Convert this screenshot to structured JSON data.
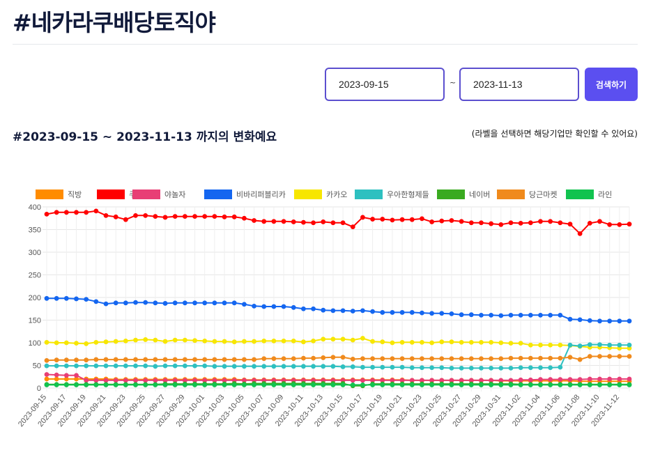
{
  "page": {
    "title": "#네카라쿠배당토직야",
    "range_title": "#2023-09-15 ~ 2023-11-13 까지의 변화예요",
    "hint": "(라벨을 선택하면 해당기업만 확인할 수 있어요)"
  },
  "search": {
    "start_date": "2023-09-15",
    "end_date": "2023-11-13",
    "separator": "~",
    "button_label": "검색하기",
    "button_color": "#5b4ff0"
  },
  "chart_data": {
    "type": "line",
    "x": [
      "2023-09-15",
      "2023-09-16",
      "2023-09-17",
      "2023-09-18",
      "2023-09-19",
      "2023-09-20",
      "2023-09-21",
      "2023-09-22",
      "2023-09-23",
      "2023-09-24",
      "2023-09-25",
      "2023-09-26",
      "2023-09-27",
      "2023-09-28",
      "2023-09-29",
      "2023-09-30",
      "2023-10-01",
      "2023-10-02",
      "2023-10-03",
      "2023-10-04",
      "2023-10-05",
      "2023-10-06",
      "2023-10-07",
      "2023-10-08",
      "2023-10-09",
      "2023-10-10",
      "2023-10-11",
      "2023-10-12",
      "2023-10-13",
      "2023-10-14",
      "2023-10-15",
      "2023-10-16",
      "2023-10-17",
      "2023-10-18",
      "2023-10-19",
      "2023-10-20",
      "2023-10-21",
      "2023-10-22",
      "2023-10-23",
      "2023-10-24",
      "2023-10-25",
      "2023-10-26",
      "2023-10-27",
      "2023-10-28",
      "2023-10-29",
      "2023-10-30",
      "2023-10-31",
      "2023-11-01",
      "2023-11-02",
      "2023-11-03",
      "2023-11-04",
      "2023-11-05",
      "2023-11-06",
      "2023-11-07",
      "2023-11-08",
      "2023-11-09",
      "2023-11-10",
      "2023-11-11",
      "2023-11-12",
      "2023-11-13"
    ],
    "x_tick_labels": [
      "2023-09-15",
      "2023-09-17",
      "2023-09-19",
      "2023-09-21",
      "2023-09-23",
      "2023-09-25",
      "2023-09-27",
      "2023-09-29",
      "2023-10-01",
      "2023-10-03",
      "2023-10-05",
      "2023-10-07",
      "2023-10-09",
      "2023-10-11",
      "2023-10-13",
      "2023-10-15",
      "2023-10-17",
      "2023-10-19",
      "2023-10-21",
      "2023-10-23",
      "2023-10-25",
      "2023-10-27",
      "2023-10-29",
      "2023-10-31",
      "2023-11-02",
      "2023-11-04",
      "2023-11-06",
      "2023-11-08",
      "2023-11-10",
      "2023-11-12"
    ],
    "y_ticks": [
      0,
      50,
      100,
      150,
      200,
      250,
      300,
      350,
      400
    ],
    "ylim": [
      0,
      400
    ],
    "grid": true,
    "legend_position": "top",
    "series": [
      {
        "name": "직방",
        "color": "#ff8c00",
        "values": [
          20,
          20,
          20,
          20,
          20,
          20,
          20,
          19,
          19,
          19,
          19,
          19,
          19,
          19,
          19,
          19,
          19,
          19,
          19,
          19,
          18,
          18,
          18,
          18,
          18,
          18,
          18,
          18,
          18,
          18,
          18,
          18,
          18,
          18,
          18,
          18,
          18,
          17,
          17,
          17,
          17,
          17,
          17,
          17,
          17,
          17,
          16,
          16,
          16,
          16,
          16,
          16,
          16,
          16,
          15,
          15,
          15,
          15,
          15,
          15
        ]
      },
      {
        "name": "쿠팡",
        "color": "#ff0000",
        "values": [
          384,
          388,
          388,
          388,
          388,
          391,
          381,
          378,
          372,
          381,
          381,
          379,
          377,
          379,
          379,
          379,
          379,
          379,
          378,
          378,
          375,
          370,
          368,
          368,
          368,
          367,
          366,
          365,
          367,
          365,
          365,
          356,
          377,
          373,
          373,
          371,
          372,
          372,
          374,
          367,
          369,
          370,
          368,
          365,
          365,
          363,
          361,
          365,
          364,
          365,
          368,
          368,
          365,
          362,
          341,
          364,
          368,
          361,
          361,
          362
        ]
      },
      {
        "name": "야놀자",
        "color": "#e83e75",
        "values": [
          30,
          29,
          28,
          28,
          17,
          17,
          17,
          17,
          17,
          17,
          17,
          17,
          17,
          17,
          17,
          17,
          17,
          17,
          17,
          17,
          17,
          17,
          17,
          17,
          17,
          17,
          17,
          17,
          17,
          17,
          17,
          17,
          17,
          17,
          17,
          17,
          17,
          17,
          17,
          17,
          17,
          17,
          17,
          17,
          17,
          17,
          17,
          17,
          18,
          18,
          19,
          19,
          19,
          19,
          19,
          20,
          20,
          20,
          20,
          20
        ]
      },
      {
        "name": "비바리퍼블리카",
        "color": "#1466f0",
        "values": [
          198,
          198,
          198,
          197,
          196,
          191,
          186,
          188,
          188,
          189,
          189,
          188,
          187,
          188,
          188,
          188,
          188,
          188,
          188,
          188,
          185,
          181,
          180,
          180,
          180,
          178,
          175,
          175,
          172,
          171,
          171,
          170,
          171,
          169,
          167,
          167,
          167,
          167,
          166,
          165,
          165,
          164,
          162,
          162,
          161,
          161,
          160,
          161,
          161,
          161,
          161,
          161,
          161,
          152,
          151,
          149,
          148,
          148,
          148,
          148
        ]
      },
      {
        "name": "카카오",
        "color": "#f7e600",
        "values": [
          101,
          100,
          100,
          99,
          98,
          101,
          102,
          103,
          104,
          106,
          107,
          106,
          103,
          106,
          106,
          105,
          104,
          103,
          103,
          102,
          103,
          103,
          104,
          104,
          104,
          104,
          102,
          104,
          108,
          108,
          108,
          106,
          110,
          103,
          102,
          100,
          101,
          101,
          101,
          100,
          102,
          102,
          101,
          101,
          101,
          101,
          100,
          99,
          99,
          95,
          95,
          95,
          95,
          94,
          92,
          90,
          90,
          89,
          88,
          88
        ]
      },
      {
        "name": "우아한형제들",
        "color": "#2ec0c0",
        "values": [
          49,
          49,
          49,
          49,
          49,
          49,
          49,
          49,
          49,
          49,
          49,
          48,
          49,
          49,
          49,
          49,
          49,
          48,
          48,
          48,
          48,
          48,
          48,
          48,
          48,
          48,
          48,
          48,
          48,
          48,
          47,
          47,
          46,
          46,
          46,
          46,
          46,
          45,
          45,
          45,
          45,
          44,
          44,
          44,
          44,
          44,
          44,
          44,
          45,
          45,
          45,
          45,
          46,
          95,
          93,
          96,
          96,
          95,
          95,
          95
        ]
      },
      {
        "name": "네이버",
        "color": "#3aaa20",
        "values": [
          8,
          8,
          8,
          8,
          8,
          8,
          8,
          8,
          8,
          8,
          8,
          8,
          9,
          9,
          9,
          9,
          9,
          9,
          9,
          10,
          9,
          10,
          10,
          10,
          10,
          10,
          10,
          10,
          10,
          10,
          10,
          5,
          5,
          9,
          9,
          9,
          9,
          9,
          9,
          9,
          9,
          9,
          9,
          9,
          9,
          9,
          9,
          9,
          8,
          8,
          8,
          8,
          8,
          8,
          8,
          8,
          8,
          8,
          8,
          8
        ]
      },
      {
        "name": "당근마켓",
        "color": "#f08a1c",
        "values": [
          61,
          62,
          62,
          62,
          62,
          63,
          63,
          63,
          63,
          63,
          63,
          63,
          63,
          63,
          63,
          63,
          63,
          63,
          63,
          63,
          63,
          63,
          65,
          65,
          65,
          65,
          66,
          66,
          67,
          68,
          68,
          64,
          65,
          65,
          65,
          65,
          65,
          65,
          65,
          65,
          65,
          65,
          65,
          65,
          65,
          65,
          65,
          66,
          66,
          66,
          66,
          66,
          66,
          68,
          63,
          70,
          70,
          70,
          70,
          70
        ]
      },
      {
        "name": "라인",
        "color": "#11c34f",
        "values": [
          7,
          7,
          7,
          7,
          7,
          7,
          7,
          7,
          7,
          7,
          7,
          7,
          7,
          7,
          7,
          7,
          7,
          7,
          7,
          7,
          7,
          7,
          7,
          7,
          7,
          7,
          7,
          7,
          7,
          7,
          7,
          7,
          7,
          7,
          7,
          7,
          7,
          7,
          7,
          7,
          7,
          7,
          7,
          7,
          7,
          7,
          7,
          7,
          7,
          7,
          7,
          7,
          7,
          7,
          7,
          7,
          7,
          7,
          7,
          7
        ]
      }
    ]
  }
}
